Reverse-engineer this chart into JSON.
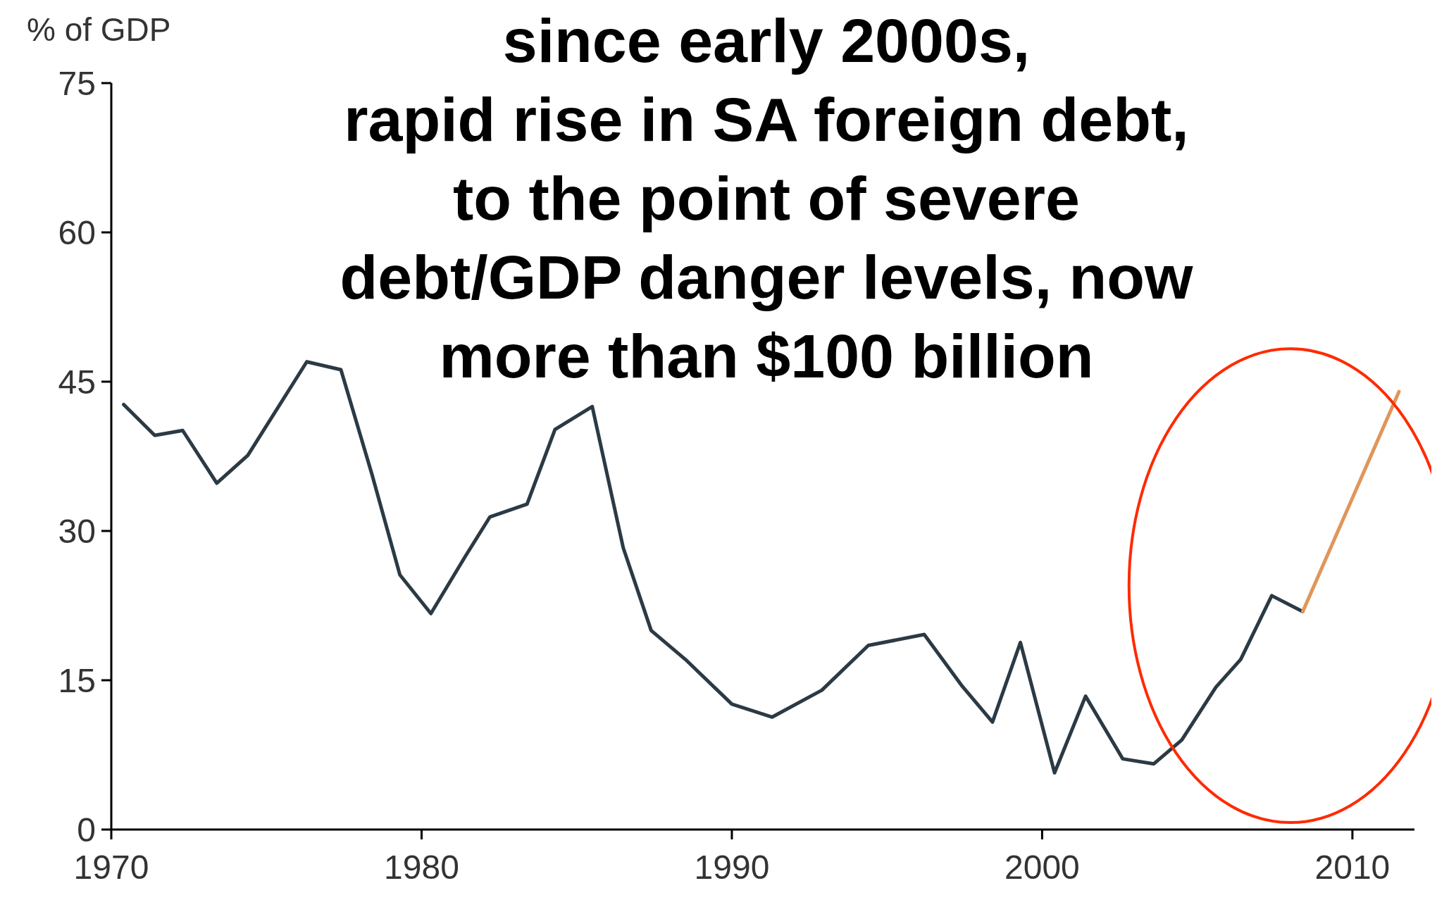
{
  "chart_data": {
    "type": "line",
    "title": "since early 2000s,\nrapid rise in SA foreign debt,\nto the point of severe\ndebt/GDP danger levels, now\nmore than $100 billion",
    "ylabel": "% of GDP",
    "xlim": [
      1970,
      2012
    ],
    "xticks": [
      1970,
      1980,
      1990,
      2000,
      2010
    ],
    "ylim": [
      0,
      75
    ],
    "yticks": [
      0,
      15,
      30,
      45,
      60,
      75
    ],
    "grid": false,
    "marker": "none",
    "line_style": "solid",
    "series": [
      {
        "color": "#2b3a44",
        "x": [
          1970.4,
          1971.4,
          1972.3,
          1973.4,
          1974.4,
          1976.3,
          1977.4,
          1978.4,
          1979.3,
          1980.3,
          1981.4,
          1982.2,
          1983.4,
          1984.3,
          1985.5,
          1986.5,
          1987.4,
          1988.5,
          1990.0,
          1991.3,
          1992.9,
          1994.4,
          1996.2,
          1997.4,
          1998.4,
          1999.3,
          2000.4,
          2001.4,
          2002.6,
          2003.6,
          2004.5,
          2005.6,
          2006.4,
          2007.4,
          2008.4
        ],
        "values": [
          42.7,
          39.6,
          40.1,
          34.8,
          37.6,
          47.0,
          46.2,
          35.7,
          25.6,
          21.7,
          27.4,
          31.4,
          32.7,
          40.2,
          42.5,
          28.3,
          20.0,
          17.1,
          12.6,
          11.3,
          14.0,
          18.5,
          19.6,
          14.5,
          10.8,
          18.8,
          5.7,
          13.4,
          7.1,
          6.6,
          9.0,
          14.3,
          17.1,
          23.5,
          21.9
        ]
      },
      {
        "color": "#e0965a",
        "x": [
          2008.4,
          2011.5
        ],
        "values": [
          21.9,
          44.0
        ]
      }
    ]
  }
}
